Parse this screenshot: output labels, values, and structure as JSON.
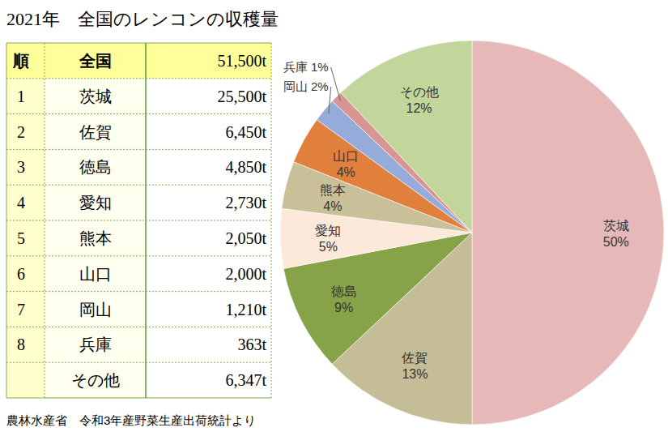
{
  "chart_data": {
    "type": "pie",
    "title": "2021年　全国のレンコンの収穫量",
    "categories": [
      "茨城",
      "佐賀",
      "徳島",
      "愛知",
      "熊本",
      "山口",
      "岡山",
      "兵庫",
      "その他"
    ],
    "values": [
      50,
      13,
      9,
      5,
      4,
      4,
      2,
      1,
      12
    ],
    "value_labels": [
      "50%",
      "13%",
      "9%",
      "5%",
      "4%",
      "4%",
      "2%",
      "1%",
      "12%"
    ],
    "colors": [
      "#e6b8b7",
      "#c4bd97",
      "#86a348",
      "#fde9d9",
      "#c9c09a",
      "#e0803c",
      "#95abd9",
      "#d99594",
      "#c2d69b"
    ],
    "data_labels": true
  },
  "table": {
    "header": [
      "順",
      "全国",
      "51,500t"
    ],
    "rows": [
      [
        "1",
        "茨城",
        "25,500t"
      ],
      [
        "2",
        "佐賀",
        "6,450t"
      ],
      [
        "3",
        "徳島",
        "4,850t"
      ],
      [
        "4",
        "愛知",
        "2,730t"
      ],
      [
        "5",
        "熊本",
        "2,050t"
      ],
      [
        "6",
        "山口",
        "2,000t"
      ],
      [
        "7",
        "岡山",
        "1,210t"
      ],
      [
        "8",
        "兵庫",
        "363t"
      ],
      [
        null,
        "その他",
        "6,347t"
      ]
    ]
  },
  "source": "農林水産省　令和3年産野菜生産出荷統計より"
}
